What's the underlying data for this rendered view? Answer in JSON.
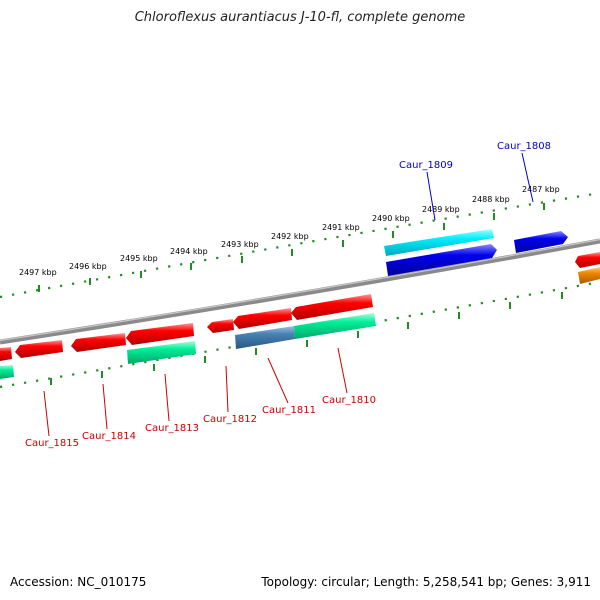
{
  "title": "Chloroflexus aurantiacus J-10-fl, complete genome",
  "footer": {
    "accession": "Accession: NC_010175",
    "topology": "Topology: circular; Length: 5,258,541 bp; Genes: 3,911"
  },
  "colors": {
    "backbone": "#808080",
    "tick": "#228B22",
    "forward_gene": "#0000ee",
    "forward_gene_alt": "#00e5ee",
    "reverse_gene": "#ee0000",
    "reverse_gene_alt": "#00ee90",
    "reverse_gene_other": "#4682b4",
    "orange": "#ee8800",
    "label_blue": "#0000cc",
    "label_red": "#cc0000"
  },
  "scale_labels": [
    "2497 kbp",
    "2496 kbp",
    "2495 kbp",
    "2494 kbp",
    "2493 kbp",
    "2492 kbp",
    "2491 kbp",
    "2490 kbp",
    "2489 kbp",
    "2488 kbp",
    "2487 kbp"
  ],
  "gene_labels": [
    {
      "name": "Caur_1809",
      "strand": "forward"
    },
    {
      "name": "Caur_1808",
      "strand": "forward"
    },
    {
      "name": "Caur_1815",
      "strand": "reverse"
    },
    {
      "name": "Caur_1814",
      "strand": "reverse"
    },
    {
      "name": "Caur_1813",
      "strand": "reverse"
    },
    {
      "name": "Caur_1812",
      "strand": "reverse"
    },
    {
      "name": "Caur_1811",
      "strand": "reverse"
    },
    {
      "name": "Caur_1810",
      "strand": "reverse"
    }
  ]
}
